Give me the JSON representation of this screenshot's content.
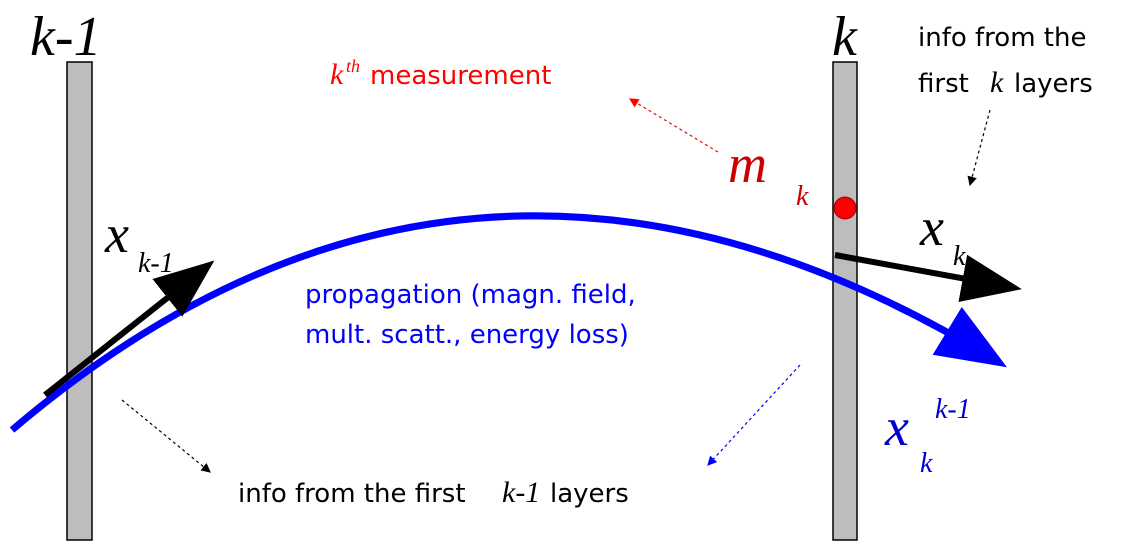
{
  "layers": {
    "previous": "k-1",
    "current": "k"
  },
  "measurement": {
    "symbol": "k",
    "superscript": "th",
    "text": "measurement"
  },
  "measurement_point": {
    "symbol": "m",
    "subscript": "k"
  },
  "state_previous": {
    "symbol": "x",
    "subscript": "k-1"
  },
  "state_current": {
    "symbol": "x",
    "subscript": "k"
  },
  "state_predicted": {
    "symbol": "x",
    "subscript": "k",
    "superscript": "k-1"
  },
  "propagation": {
    "line1": "propagation (magn. field,",
    "line2": "mult. scatt., energy loss)"
  },
  "info_current": {
    "line1": "info from the",
    "prefix": "first",
    "k": "k",
    "suffix": "layers"
  },
  "info_previous": {
    "prefix": "info from the first",
    "k": "k-1",
    "suffix": "layers"
  }
}
